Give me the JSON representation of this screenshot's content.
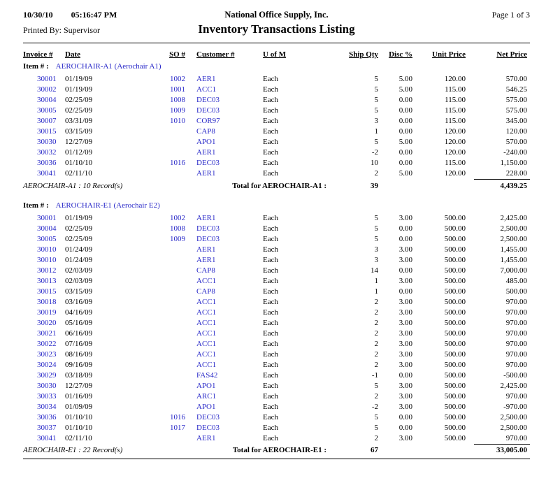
{
  "header": {
    "date": "10/30/10",
    "time": "05:16:47 PM",
    "company": "National Office Supply, Inc.",
    "page": "Page 1 of 3",
    "printed_by": "Printed By: Supervisor",
    "title": "Inventory Transactions Listing"
  },
  "colors": {
    "link_blue": "#2828c8",
    "text": "#000000",
    "background": "#ffffff"
  },
  "table": {
    "columns": [
      "Invoice #",
      "Date",
      "SO #",
      "Customer #",
      "U of M",
      "Ship Qty",
      "Disc %",
      "Unit Price",
      "Net Price"
    ],
    "item_label": "Item # :",
    "groups": [
      {
        "item_code": "AEROCHAIR-A1 (Aerochair A1)",
        "rows": [
          [
            "30001",
            "01/19/09",
            "1002",
            "AER1",
            "Each",
            "5",
            "5.00",
            "120.00",
            "570.00"
          ],
          [
            "30002",
            "01/19/09",
            "1001",
            "ACC1",
            "Each",
            "5",
            "5.00",
            "115.00",
            "546.25"
          ],
          [
            "30004",
            "02/25/09",
            "1008",
            "DEC03",
            "Each",
            "5",
            "0.00",
            "115.00",
            "575.00"
          ],
          [
            "30005",
            "02/25/09",
            "1009",
            "DEC03",
            "Each",
            "5",
            "0.00",
            "115.00",
            "575.00"
          ],
          [
            "30007",
            "03/31/09",
            "1010",
            "COR97",
            "Each",
            "3",
            "0.00",
            "115.00",
            "345.00"
          ],
          [
            "30015",
            "03/15/09",
            "",
            "CAP8",
            "Each",
            "1",
            "0.00",
            "120.00",
            "120.00"
          ],
          [
            "30030",
            "12/27/09",
            "",
            "APO1",
            "Each",
            "5",
            "5.00",
            "120.00",
            "570.00"
          ],
          [
            "30032",
            "01/12/09",
            "",
            "AER1",
            "Each",
            "-2",
            "0.00",
            "120.00",
            "-240.00"
          ],
          [
            "30036",
            "01/10/10",
            "1016",
            "DEC03",
            "Each",
            "10",
            "0.00",
            "115.00",
            "1,150.00"
          ],
          [
            "30041",
            "02/11/10",
            "",
            "AER1",
            "Each",
            "2",
            "5.00",
            "120.00",
            "228.00"
          ]
        ],
        "records_text": "AEROCHAIR-A1 : 10 Record(s)",
        "total_label": "Total for AEROCHAIR-A1 :",
        "total_qty": "39",
        "total_net": "4,439.25"
      },
      {
        "item_code": "AEROCHAIR-E1 (Aerochair E2)",
        "rows": [
          [
            "30001",
            "01/19/09",
            "1002",
            "AER1",
            "Each",
            "5",
            "3.00",
            "500.00",
            "2,425.00"
          ],
          [
            "30004",
            "02/25/09",
            "1008",
            "DEC03",
            "Each",
            "5",
            "0.00",
            "500.00",
            "2,500.00"
          ],
          [
            "30005",
            "02/25/09",
            "1009",
            "DEC03",
            "Each",
            "5",
            "0.00",
            "500.00",
            "2,500.00"
          ],
          [
            "30010",
            "01/24/09",
            "",
            "AER1",
            "Each",
            "3",
            "3.00",
            "500.00",
            "1,455.00"
          ],
          [
            "30010",
            "01/24/09",
            "",
            "AER1",
            "Each",
            "3",
            "3.00",
            "500.00",
            "1,455.00"
          ],
          [
            "30012",
            "02/03/09",
            "",
            "CAP8",
            "Each",
            "14",
            "0.00",
            "500.00",
            "7,000.00"
          ],
          [
            "30013",
            "02/03/09",
            "",
            "ACC1",
            "Each",
            "1",
            "3.00",
            "500.00",
            "485.00"
          ],
          [
            "30015",
            "03/15/09",
            "",
            "CAP8",
            "Each",
            "1",
            "0.00",
            "500.00",
            "500.00"
          ],
          [
            "30018",
            "03/16/09",
            "",
            "ACC1",
            "Each",
            "2",
            "3.00",
            "500.00",
            "970.00"
          ],
          [
            "30019",
            "04/16/09",
            "",
            "ACC1",
            "Each",
            "2",
            "3.00",
            "500.00",
            "970.00"
          ],
          [
            "30020",
            "05/16/09",
            "",
            "ACC1",
            "Each",
            "2",
            "3.00",
            "500.00",
            "970.00"
          ],
          [
            "30021",
            "06/16/09",
            "",
            "ACC1",
            "Each",
            "2",
            "3.00",
            "500.00",
            "970.00"
          ],
          [
            "30022",
            "07/16/09",
            "",
            "ACC1",
            "Each",
            "2",
            "3.00",
            "500.00",
            "970.00"
          ],
          [
            "30023",
            "08/16/09",
            "",
            "ACC1",
            "Each",
            "2",
            "3.00",
            "500.00",
            "970.00"
          ],
          [
            "30024",
            "09/16/09",
            "",
            "ACC1",
            "Each",
            "2",
            "3.00",
            "500.00",
            "970.00"
          ],
          [
            "30029",
            "03/18/09",
            "",
            "FAS42",
            "Each",
            "-1",
            "0.00",
            "500.00",
            "-500.00"
          ],
          [
            "30030",
            "12/27/09",
            "",
            "APO1",
            "Each",
            "5",
            "3.00",
            "500.00",
            "2,425.00"
          ],
          [
            "30033",
            "01/16/09",
            "",
            "ARC1",
            "Each",
            "2",
            "3.00",
            "500.00",
            "970.00"
          ],
          [
            "30034",
            "01/09/09",
            "",
            "APO1",
            "Each",
            "-2",
            "3.00",
            "500.00",
            "-970.00"
          ],
          [
            "30036",
            "01/10/10",
            "1016",
            "DEC03",
            "Each",
            "5",
            "0.00",
            "500.00",
            "2,500.00"
          ],
          [
            "30037",
            "01/10/10",
            "1017",
            "DEC03",
            "Each",
            "5",
            "0.00",
            "500.00",
            "2,500.00"
          ],
          [
            "30041",
            "02/11/10",
            "",
            "AER1",
            "Each",
            "2",
            "3.00",
            "500.00",
            "970.00"
          ]
        ],
        "records_text": "AEROCHAIR-E1 : 22 Record(s)",
        "total_label": "Total for AEROCHAIR-E1 :",
        "total_qty": "67",
        "total_net": "33,005.00"
      }
    ]
  }
}
